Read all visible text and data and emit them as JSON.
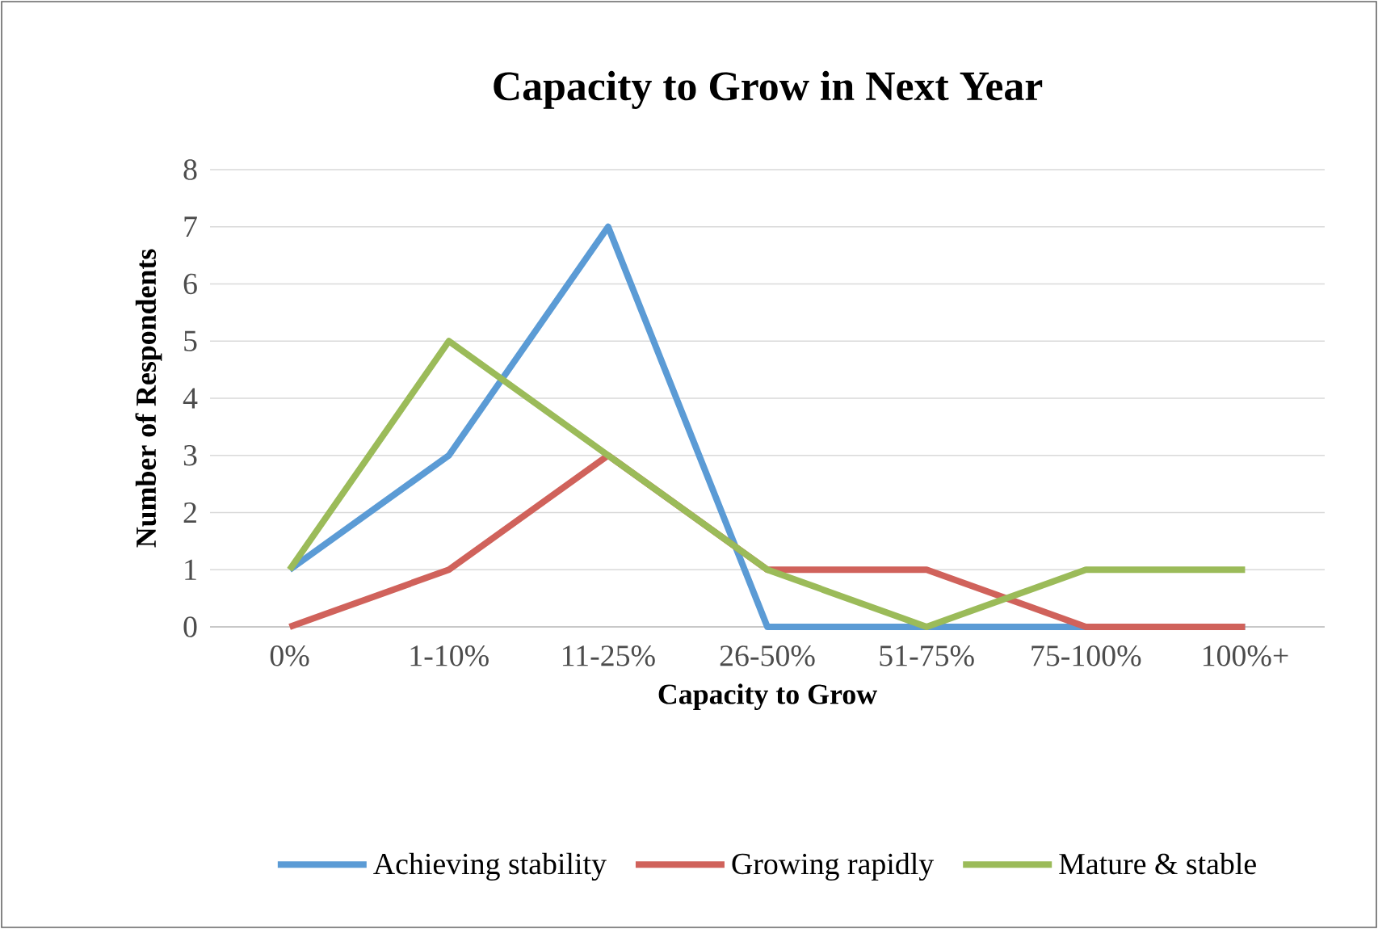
{
  "chart_data": {
    "type": "line",
    "title": "Capacity to Grow in Next Year",
    "xlabel": "Capacity to Grow",
    "ylabel": "Number of Respondents",
    "categories": [
      "0%",
      "1-10%",
      "11-25%",
      "26-50%",
      "51-75%",
      "75-100%",
      "100%+"
    ],
    "series": [
      {
        "name": "Achieving stability",
        "color": "#5B9BD5",
        "values": [
          1,
          3,
          7,
          0,
          0,
          0,
          0
        ]
      },
      {
        "name": "Growing rapidly",
        "color": "#D0625B",
        "values": [
          0,
          1,
          3,
          1,
          1,
          0,
          0
        ]
      },
      {
        "name": "Mature & stable",
        "color": "#9BBB59",
        "values": [
          1,
          5,
          3,
          1,
          0,
          1,
          1
        ]
      }
    ],
    "ylim": [
      0,
      8
    ],
    "yticks": [
      0,
      1,
      2,
      3,
      4,
      5,
      6,
      7,
      8
    ],
    "grid": "y",
    "legend": "bottom"
  }
}
